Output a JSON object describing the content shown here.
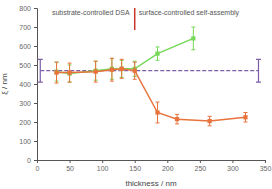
{
  "chart_data": {
    "type": "line",
    "x_label": "thickness / nm",
    "y_label": "ξ / nm",
    "xlim": [
      0,
      350
    ],
    "xticks": [
      0,
      50,
      100,
      150,
      200,
      250,
      300,
      350
    ],
    "ylim": [
      0,
      800
    ],
    "yticks": [
      0,
      100,
      200,
      300,
      400,
      500,
      600,
      700,
      800
    ],
    "grid": false,
    "marker": "square",
    "series": [
      {
        "name": null,
        "color": "#77d85a",
        "x": [
          30,
          50,
          90,
          115,
          130,
          150,
          185,
          240
        ],
        "values": [
          465,
          455,
          470,
          480,
          480,
          480,
          560,
          640
        ],
        "errors": [
          50,
          45,
          50,
          55,
          45,
          40,
          35,
          60
        ]
      },
      {
        "name": null,
        "color": "#e8733c",
        "x": [
          30,
          50,
          90,
          115,
          130,
          150,
          185,
          215,
          265,
          320
        ],
        "values": [
          460,
          460,
          465,
          475,
          480,
          470,
          250,
          215,
          205,
          225
        ],
        "errors": [
          55,
          50,
          55,
          60,
          50,
          45,
          55,
          25,
          25,
          25
        ]
      }
    ],
    "reference": {
      "value": 470,
      "error": 60,
      "x": [
        5,
        340
      ],
      "color": "#7b5ea7",
      "line_style": "dashed"
    },
    "divider": {
      "x": 150,
      "color": "#c8352b"
    },
    "annotations": [
      "substrate-controlled DSA",
      "surface-controlled self-assembly"
    ]
  }
}
